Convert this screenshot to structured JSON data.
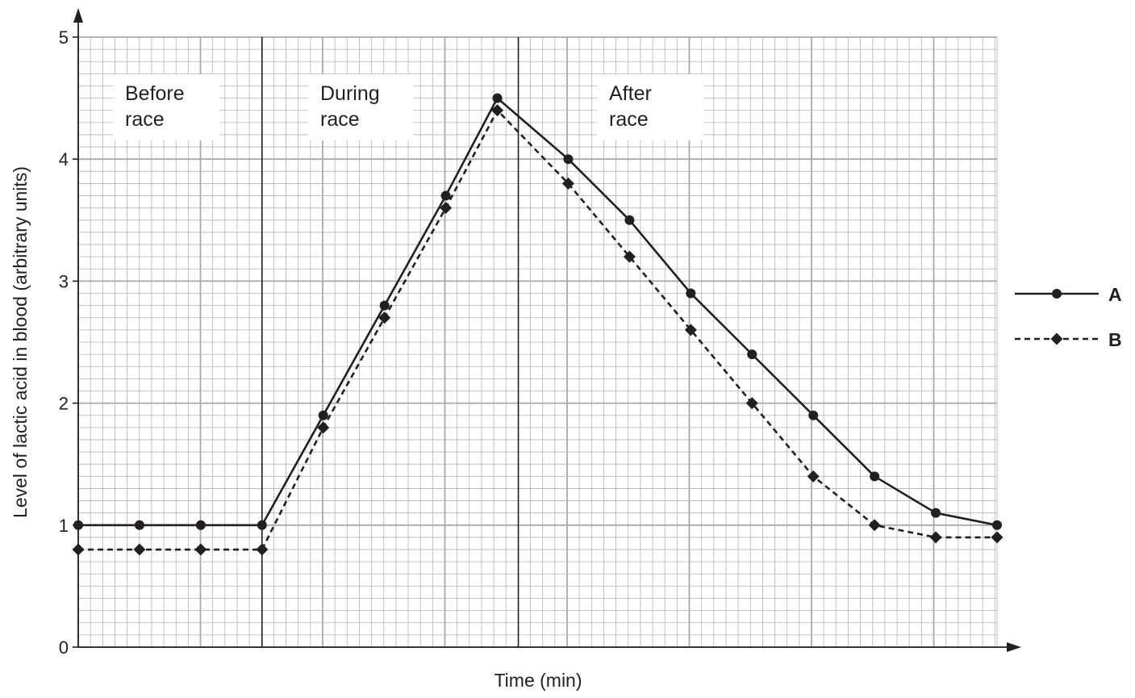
{
  "chart_data": {
    "type": "line",
    "xlabel": "Time (min)",
    "ylabel": "Level of lactic acid in blood (arbitrary units)",
    "ylim": [
      0,
      5
    ],
    "yticks": [
      "0",
      "1",
      "2",
      "3",
      "4",
      "5"
    ],
    "x_tick_labels_shown": false,
    "grid": true,
    "legend_position": "right",
    "phases": [
      {
        "label_lines": [
          "Before",
          "race"
        ]
      },
      {
        "label_lines": [
          "During",
          "race"
        ]
      },
      {
        "label_lines": [
          "After",
          "race"
        ]
      }
    ],
    "series": [
      {
        "name": "A",
        "line_style": "solid",
        "marker": "circle",
        "values": [
          1.0,
          1.0,
          1.0,
          1.0,
          1.9,
          2.8,
          3.7,
          4.5,
          4.0,
          3.5,
          2.9,
          2.4,
          1.9,
          1.4,
          1.1,
          1.0
        ]
      },
      {
        "name": "B",
        "line_style": "dashed",
        "marker": "diamond",
        "values": [
          0.8,
          0.8,
          0.8,
          0.8,
          1.8,
          2.7,
          3.6,
          4.4,
          3.8,
          3.2,
          2.6,
          2.0,
          1.4,
          1.0,
          0.9,
          0.9
        ]
      }
    ],
    "colors": {
      "ink": "#231f20",
      "grid_major": "#a7a9ac",
      "grid_minor": "#b1b3b6",
      "background": "#ffffff"
    }
  }
}
